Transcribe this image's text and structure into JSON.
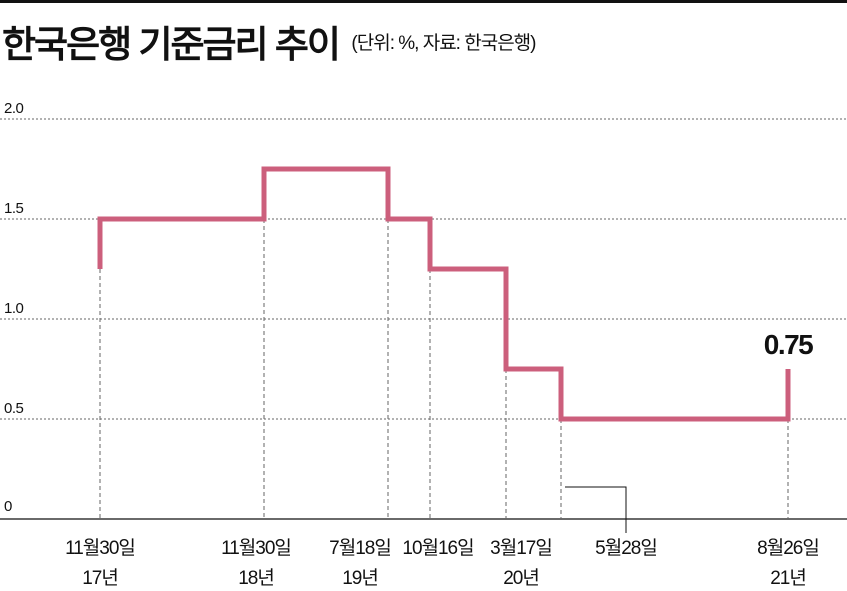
{
  "header": {
    "title": "한국은행 기준금리 추이",
    "subtitle": "(단위: %, 자료: 한국은행)"
  },
  "chart_data": {
    "type": "line",
    "step": true,
    "title": "한국은행 기준금리 추이",
    "subtitle": "(단위: %, 자료: 한국은행)",
    "ylim": [
      0,
      2.0
    ],
    "yticks": [
      {
        "value": 0,
        "label": "0"
      },
      {
        "value": 0.5,
        "label": "0.5"
      },
      {
        "value": 1.0,
        "label": "1.0"
      },
      {
        "value": 1.5,
        "label": "1.5"
      },
      {
        "value": 2.0,
        "label": "2.0"
      }
    ],
    "grid": true,
    "series": [
      {
        "color": "#cc5f7c",
        "start_value": 1.25,
        "points": [
          {
            "date": "2017-11-30",
            "value": 1.5
          },
          {
            "date": "2018-11-30",
            "value": 1.75
          },
          {
            "date": "2019-07-18",
            "value": 1.5
          },
          {
            "date": "2019-10-16",
            "value": 1.25
          },
          {
            "date": "2020-03-17",
            "value": 0.75
          },
          {
            "date": "2020-05-28",
            "value": 0.5
          },
          {
            "date": "2021-08-26",
            "value": 0.75
          }
        ]
      }
    ],
    "date_labels": [
      {
        "date": "2017-11-30",
        "line1": "11월30일",
        "line2": "17년"
      },
      {
        "date": "2018-11-30",
        "line1": "11월30일",
        "line2": "18년"
      },
      {
        "date": "2019-07-18",
        "line1": "7월18일",
        "line2": "19년"
      },
      {
        "date": "2019-10-16",
        "line1": "10월16일",
        "line2": ""
      },
      {
        "date": "2020-03-17",
        "line1": "3월17일",
        "line2": "20년"
      },
      {
        "date": "2020-05-28",
        "line1": "5월28일",
        "line2": "",
        "leader": true
      },
      {
        "date": "2021-08-26",
        "line1": "8월26일",
        "line2": "21년"
      }
    ],
    "annotations": [
      {
        "date": "2021-08-26",
        "value": 0.75,
        "text": "0.75"
      }
    ],
    "colors": {
      "line": "#cc5f7c",
      "grid": "#666666",
      "axis": "#111111"
    }
  }
}
